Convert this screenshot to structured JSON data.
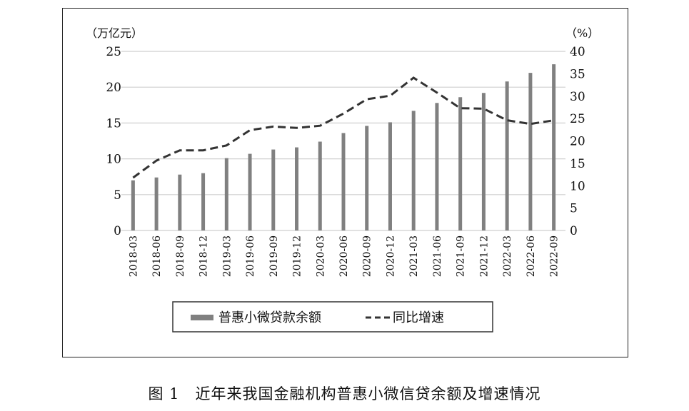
{
  "chart_data": {
    "type": "bar+line",
    "categories": [
      "2018-03",
      "2018-06",
      "2018-09",
      "2018-12",
      "2019-03",
      "2019-06",
      "2019-09",
      "2019-12",
      "2020-03",
      "2020-06",
      "2020-09",
      "2020-12",
      "2021-03",
      "2021-06",
      "2021-09",
      "2021-12",
      "2022-03",
      "2022-06",
      "2022-09"
    ],
    "series": [
      {
        "name": "普惠小微贷款余额",
        "type": "bar",
        "axis": "left",
        "color": "#808080",
        "values": [
          7.0,
          7.4,
          7.8,
          8.0,
          10.1,
          10.7,
          11.3,
          11.6,
          12.4,
          13.6,
          14.6,
          15.1,
          16.7,
          17.8,
          18.6,
          19.2,
          20.8,
          22.0,
          23.2
        ]
      },
      {
        "name": "同比增速",
        "type": "line",
        "style": "dashed",
        "axis": "right",
        "color": "#333333",
        "values": [
          11.8,
          15.6,
          17.9,
          17.9,
          19.0,
          22.4,
          23.2,
          22.9,
          23.4,
          26.1,
          29.3,
          30.1,
          34.1,
          30.8,
          27.3,
          27.2,
          24.6,
          23.8,
          24.6
        ]
      }
    ],
    "left_axis": {
      "unit": "（万亿元）",
      "ylim": [
        0,
        25
      ],
      "ticks": [
        "0",
        "5",
        "10",
        "15",
        "20",
        "25"
      ]
    },
    "right_axis": {
      "unit": "（%）",
      "ylim": [
        0,
        40
      ],
      "ticks": [
        "0",
        "5",
        "10",
        "15",
        "20",
        "25",
        "30",
        "35",
        "40"
      ]
    },
    "grid": "horizontal",
    "legend_position": "bottom"
  },
  "caption": "图 1　近年来我国金融机构普惠小微信贷余额及增速情况"
}
